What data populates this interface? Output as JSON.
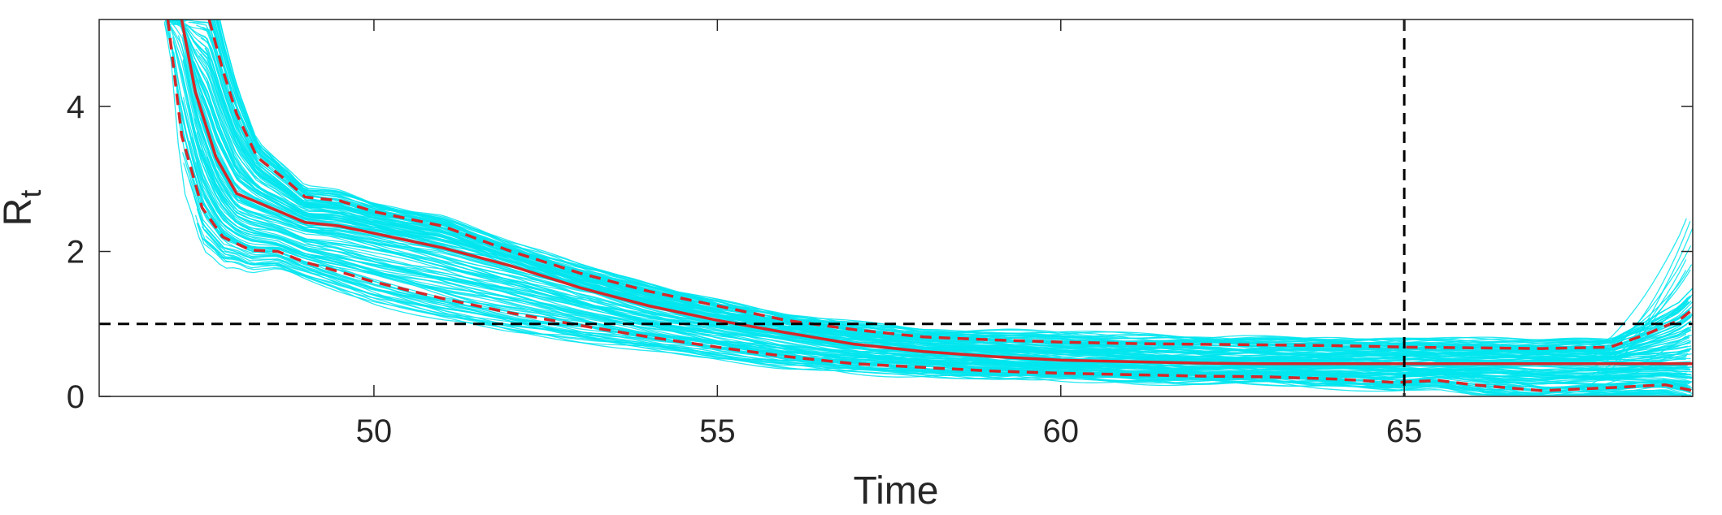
{
  "chart_data": {
    "type": "line",
    "title": "",
    "xlabel": "Time",
    "ylabel": "R",
    "ylabel_subscript": "t",
    "xlim": [
      46,
      69.2
    ],
    "ylim": [
      0,
      5.2
    ],
    "xticks": [
      50,
      55,
      60,
      65
    ],
    "yticks": [
      0,
      2,
      4
    ],
    "grid": false,
    "legend": "none",
    "colors": {
      "ensemble": "#00e5ee",
      "median": "#d62728",
      "reference": "#000000",
      "axes": "#262626"
    },
    "reference_lines": [
      {
        "orientation": "horizontal",
        "value": 1,
        "style": "dashed"
      },
      {
        "orientation": "vertical",
        "value": 65,
        "style": "dashed"
      }
    ],
    "series": [
      {
        "role": "median",
        "style": "solid",
        "x": [
          47.2,
          47.4,
          47.7,
          48.0,
          48.5,
          49.0,
          49.5,
          50.0,
          51.0,
          52.0,
          53.0,
          54.0,
          55.0,
          56.0,
          57.0,
          58.0,
          59.0,
          60.0,
          61.0,
          62.0,
          63.0,
          64.0,
          65.0,
          66.0,
          67.0,
          68.0,
          69.0,
          69.2
        ],
        "y": [
          5.2,
          4.2,
          3.3,
          2.8,
          2.6,
          2.4,
          2.35,
          2.25,
          2.05,
          1.8,
          1.5,
          1.25,
          1.05,
          0.88,
          0.72,
          0.62,
          0.55,
          0.5,
          0.48,
          0.46,
          0.45,
          0.45,
          0.45,
          0.45,
          0.45,
          0.45,
          0.45,
          0.45
        ]
      },
      {
        "role": "upper-bound",
        "style": "dashed",
        "x": [
          47.6,
          47.8,
          48.0,
          48.3,
          48.7,
          49.0,
          49.5,
          50.0,
          51.0,
          52.0,
          53.0,
          54.0,
          55.0,
          56.0,
          57.0,
          58.0,
          59.0,
          60.0,
          61.0,
          62.0,
          63.0,
          64.0,
          65.0,
          66.0,
          67.0,
          68.0,
          68.5,
          69.0,
          69.2
        ],
        "y": [
          5.2,
          4.5,
          3.9,
          3.3,
          3.0,
          2.75,
          2.7,
          2.55,
          2.35,
          2.0,
          1.7,
          1.45,
          1.25,
          1.05,
          0.92,
          0.82,
          0.78,
          0.75,
          0.73,
          0.72,
          0.71,
          0.7,
          0.68,
          0.67,
          0.66,
          0.68,
          0.85,
          1.05,
          1.2
        ]
      },
      {
        "role": "lower-bound",
        "style": "dashed",
        "x": [
          47.0,
          47.2,
          47.5,
          47.8,
          48.2,
          48.6,
          49.0,
          49.5,
          50.0,
          51.0,
          52.0,
          53.0,
          54.0,
          55.0,
          56.0,
          57.0,
          58.0,
          59.0,
          60.0,
          61.0,
          62.0,
          63.0,
          64.0,
          64.9,
          65.0,
          65.5,
          66.0,
          67.0,
          68.0,
          68.8,
          69.2
        ],
        "y": [
          5.2,
          3.6,
          2.6,
          2.2,
          2.02,
          2.0,
          1.85,
          1.72,
          1.58,
          1.35,
          1.15,
          0.98,
          0.82,
          0.68,
          0.55,
          0.45,
          0.4,
          0.35,
          0.32,
          0.3,
          0.28,
          0.27,
          0.24,
          0.19,
          0.2,
          0.22,
          0.16,
          0.08,
          0.12,
          0.16,
          0.08
        ]
      }
    ]
  }
}
